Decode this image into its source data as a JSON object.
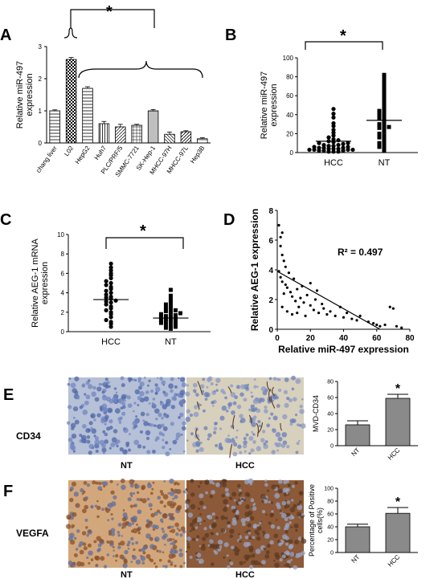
{
  "figure": {
    "panel_labels": {
      "A": "A",
      "B": "B",
      "C": "C",
      "D": "D",
      "E": "E",
      "F": "F"
    },
    "sig": "*"
  },
  "chart_data": [
    {
      "id": "A",
      "type": "bar",
      "ylabel": "Relative miR-497 expression",
      "ylim": [
        0,
        3
      ],
      "yticks": [
        "0",
        "1",
        "2",
        "3"
      ],
      "categories": [
        "chang liver",
        "L02",
        "HepG2",
        "Huh7",
        "PLC/PRF/5",
        "SMMC-7721",
        "SK-Hep-1",
        "MHCC-97H",
        "MHCC-97L",
        "Hep3B"
      ],
      "values": [
        1.0,
        2.6,
        1.7,
        0.6,
        0.5,
        0.55,
        1.0,
        0.27,
        0.35,
        0.13
      ],
      "errors": [
        0.03,
        0.06,
        0.05,
        0.07,
        0.08,
        0.03,
        0.04,
        0.07,
        0.03,
        0.03
      ]
    },
    {
      "id": "B",
      "type": "scatter",
      "ylabel": "Relative miR-497 expression",
      "ylim": [
        0,
        100
      ],
      "yticks": [
        "0",
        "20",
        "40",
        "60",
        "80",
        "100"
      ],
      "categories": [
        "HCC",
        "NT"
      ],
      "means": [
        12,
        34
      ],
      "HCC": [
        1,
        1,
        1,
        2,
        2,
        2,
        3,
        3,
        3,
        3,
        4,
        4,
        4,
        5,
        5,
        5,
        6,
        6,
        7,
        7,
        8,
        8,
        9,
        10,
        10,
        11,
        12,
        13,
        14,
        16,
        18,
        21,
        24,
        28,
        31,
        37,
        41,
        46
      ],
      "NT": [
        2,
        4,
        6,
        8,
        10,
        12,
        14,
        16,
        18,
        20,
        22,
        24,
        26,
        27,
        28,
        30,
        32,
        34,
        36,
        38,
        40,
        42,
        44,
        46,
        48,
        52,
        55,
        58,
        62,
        66,
        70,
        74,
        78,
        82
      ]
    },
    {
      "id": "C",
      "type": "scatter",
      "ylabel": "Relative AEG-1 mRNA expression",
      "ylim": [
        0,
        10
      ],
      "yticks": [
        "0",
        "2",
        "4",
        "6",
        "8",
        "10"
      ],
      "categories": [
        "HCC",
        "NT"
      ],
      "means": [
        3.3,
        1.4
      ],
      "HCC": [
        0.5,
        0.8,
        1.0,
        1.2,
        1.5,
        1.8,
        2.0,
        2.2,
        2.4,
        2.6,
        2.8,
        3.0,
        3.1,
        3.2,
        3.4,
        3.5,
        3.6,
        3.8,
        4.0,
        4.2,
        4.4,
        4.6,
        4.8,
        5.0,
        5.2,
        5.5,
        5.8,
        6.0,
        6.3,
        6.6,
        7.0
      ],
      "NT": [
        0.3,
        0.4,
        0.5,
        0.6,
        0.7,
        0.8,
        0.9,
        1.0,
        1.0,
        1.1,
        1.2,
        1.3,
        1.3,
        1.4,
        1.5,
        1.6,
        1.6,
        1.7,
        1.8,
        1.9,
        2.0,
        2.1,
        2.2,
        2.3,
        2.4,
        2.6,
        2.8,
        3.0,
        3.3,
        3.7,
        4.3
      ]
    },
    {
      "id": "D",
      "type": "scatter",
      "xlabel": "Relative miR-497 expression",
      "ylabel": "Relative AEG-1 expression",
      "xlim": [
        0,
        80
      ],
      "ylim": [
        0,
        8
      ],
      "xticks": [
        "0",
        "20",
        "40",
        "60",
        "80"
      ],
      "yticks": [
        "0",
        "2",
        "4",
        "6",
        "8"
      ],
      "annotation": "R² = 0.497",
      "fit": [
        [
          0,
          3.9
        ],
        [
          62,
          0
        ]
      ],
      "points": [
        [
          1,
          7
        ],
        [
          2,
          6.2
        ],
        [
          2,
          5.6
        ],
        [
          3,
          6.5
        ],
        [
          3,
          5.0
        ],
        [
          4,
          4.6
        ],
        [
          5,
          4.2
        ],
        [
          1,
          3.9
        ],
        [
          2,
          3.5
        ],
        [
          3,
          3.2
        ],
        [
          5,
          3.0
        ],
        [
          6,
          2.8
        ],
        [
          4,
          2.4
        ],
        [
          7,
          3.8
        ],
        [
          8,
          2.5
        ],
        [
          9,
          2.2
        ],
        [
          10,
          3.4
        ],
        [
          11,
          1.9
        ],
        [
          12,
          2.7
        ],
        [
          13,
          1.5
        ],
        [
          14,
          2.1
        ],
        [
          15,
          2.9
        ],
        [
          16,
          1.8
        ],
        [
          18,
          2.3
        ],
        [
          20,
          1.6
        ],
        [
          22,
          1.3
        ],
        [
          23,
          2.0
        ],
        [
          25,
          1.1
        ],
        [
          27,
          1.7
        ],
        [
          28,
          1.4
        ],
        [
          30,
          1.0
        ],
        [
          32,
          1.2
        ],
        [
          35,
          0.9
        ],
        [
          38,
          1.5
        ],
        [
          40,
          0.8
        ],
        [
          42,
          1.1
        ],
        [
          45,
          0.7
        ],
        [
          48,
          0.6
        ],
        [
          50,
          0.9
        ],
        [
          55,
          0.5
        ],
        [
          58,
          0.4
        ],
        [
          60,
          0.3
        ],
        [
          62,
          0.2
        ],
        [
          65,
          0.3
        ],
        [
          68,
          1.5
        ],
        [
          70,
          1.4
        ],
        [
          72,
          0.2
        ],
        [
          75,
          0.1
        ],
        [
          6,
          1.2
        ],
        [
          9,
          1.0
        ],
        [
          3,
          1.5
        ],
        [
          12,
          1.1
        ],
        [
          17,
          0.9
        ],
        [
          20,
          3.1
        ],
        [
          24,
          2.6
        ]
      ]
    },
    {
      "id": "E",
      "type": "bar",
      "ylabel": "MVD-CD34",
      "ylim": [
        0,
        80
      ],
      "yticks": [
        "0",
        "20",
        "40",
        "60",
        "80"
      ],
      "categories": [
        "NT",
        "HCC"
      ],
      "values": [
        26,
        59
      ],
      "errors": [
        5,
        5
      ]
    },
    {
      "id": "F",
      "type": "bar",
      "ylabel": "Percentage of Positive cells(%)",
      "ylim": [
        0,
        100
      ],
      "yticks": [
        "0",
        "20",
        "40",
        "60",
        "80",
        "100"
      ],
      "categories": [
        "NT",
        "HCC"
      ],
      "values": [
        40,
        61
      ],
      "errors": [
        4,
        9
      ]
    }
  ],
  "micrographs": {
    "E": {
      "row_label": "CD34",
      "captions": [
        "NT",
        "HCC"
      ]
    },
    "F": {
      "row_label": "VEGFA",
      "captions": [
        "NT",
        "HCC"
      ]
    }
  },
  "colors": {
    "hematoxylin": "#8fa0c8",
    "dab": "#a0643a",
    "bar_grey": "#8a8a8a"
  }
}
